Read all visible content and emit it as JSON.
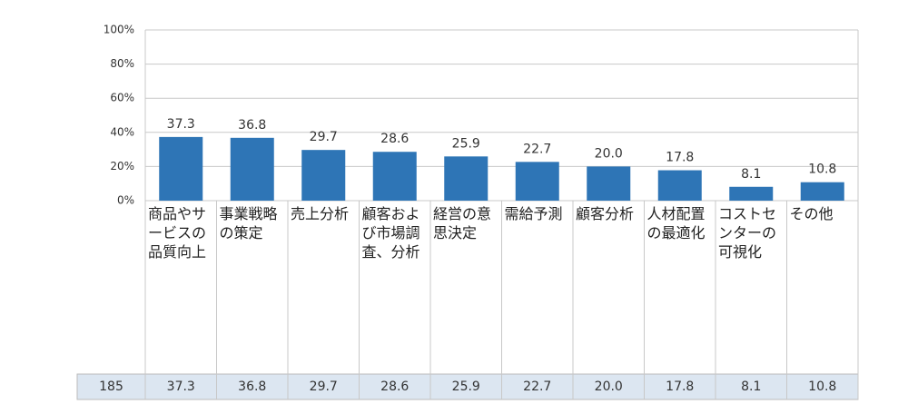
{
  "chart_data": {
    "type": "bar",
    "categories": [
      "商品やサービスの品質向上",
      "事業戦略の策定",
      "売上分析",
      "顧客および市場調査、分析",
      "経営の意思決定",
      "需給予測",
      "顧客分析",
      "人材配置の最適化",
      "コストセンターの可視化",
      "その他"
    ],
    "values": [
      37.3,
      36.8,
      29.7,
      28.6,
      25.9,
      22.7,
      20.0,
      17.8,
      8.1,
      10.8
    ],
    "value_labels": [
      "37.3",
      "36.8",
      "29.7",
      "28.6",
      "25.9",
      "22.7",
      "20.0",
      "17.8",
      "8.1",
      "10.8"
    ],
    "color": "#2e75b6",
    "ylim": [
      0,
      100
    ],
    "yticks": [
      {
        "value": 0,
        "label": "0%"
      },
      {
        "value": 20,
        "label": "20%"
      },
      {
        "value": 40,
        "label": "40%"
      },
      {
        "value": 60,
        "label": "60%"
      },
      {
        "value": 80,
        "label": "80%"
      },
      {
        "value": 100,
        "label": "100%"
      }
    ],
    "grid": true,
    "sample_size": 185
  }
}
